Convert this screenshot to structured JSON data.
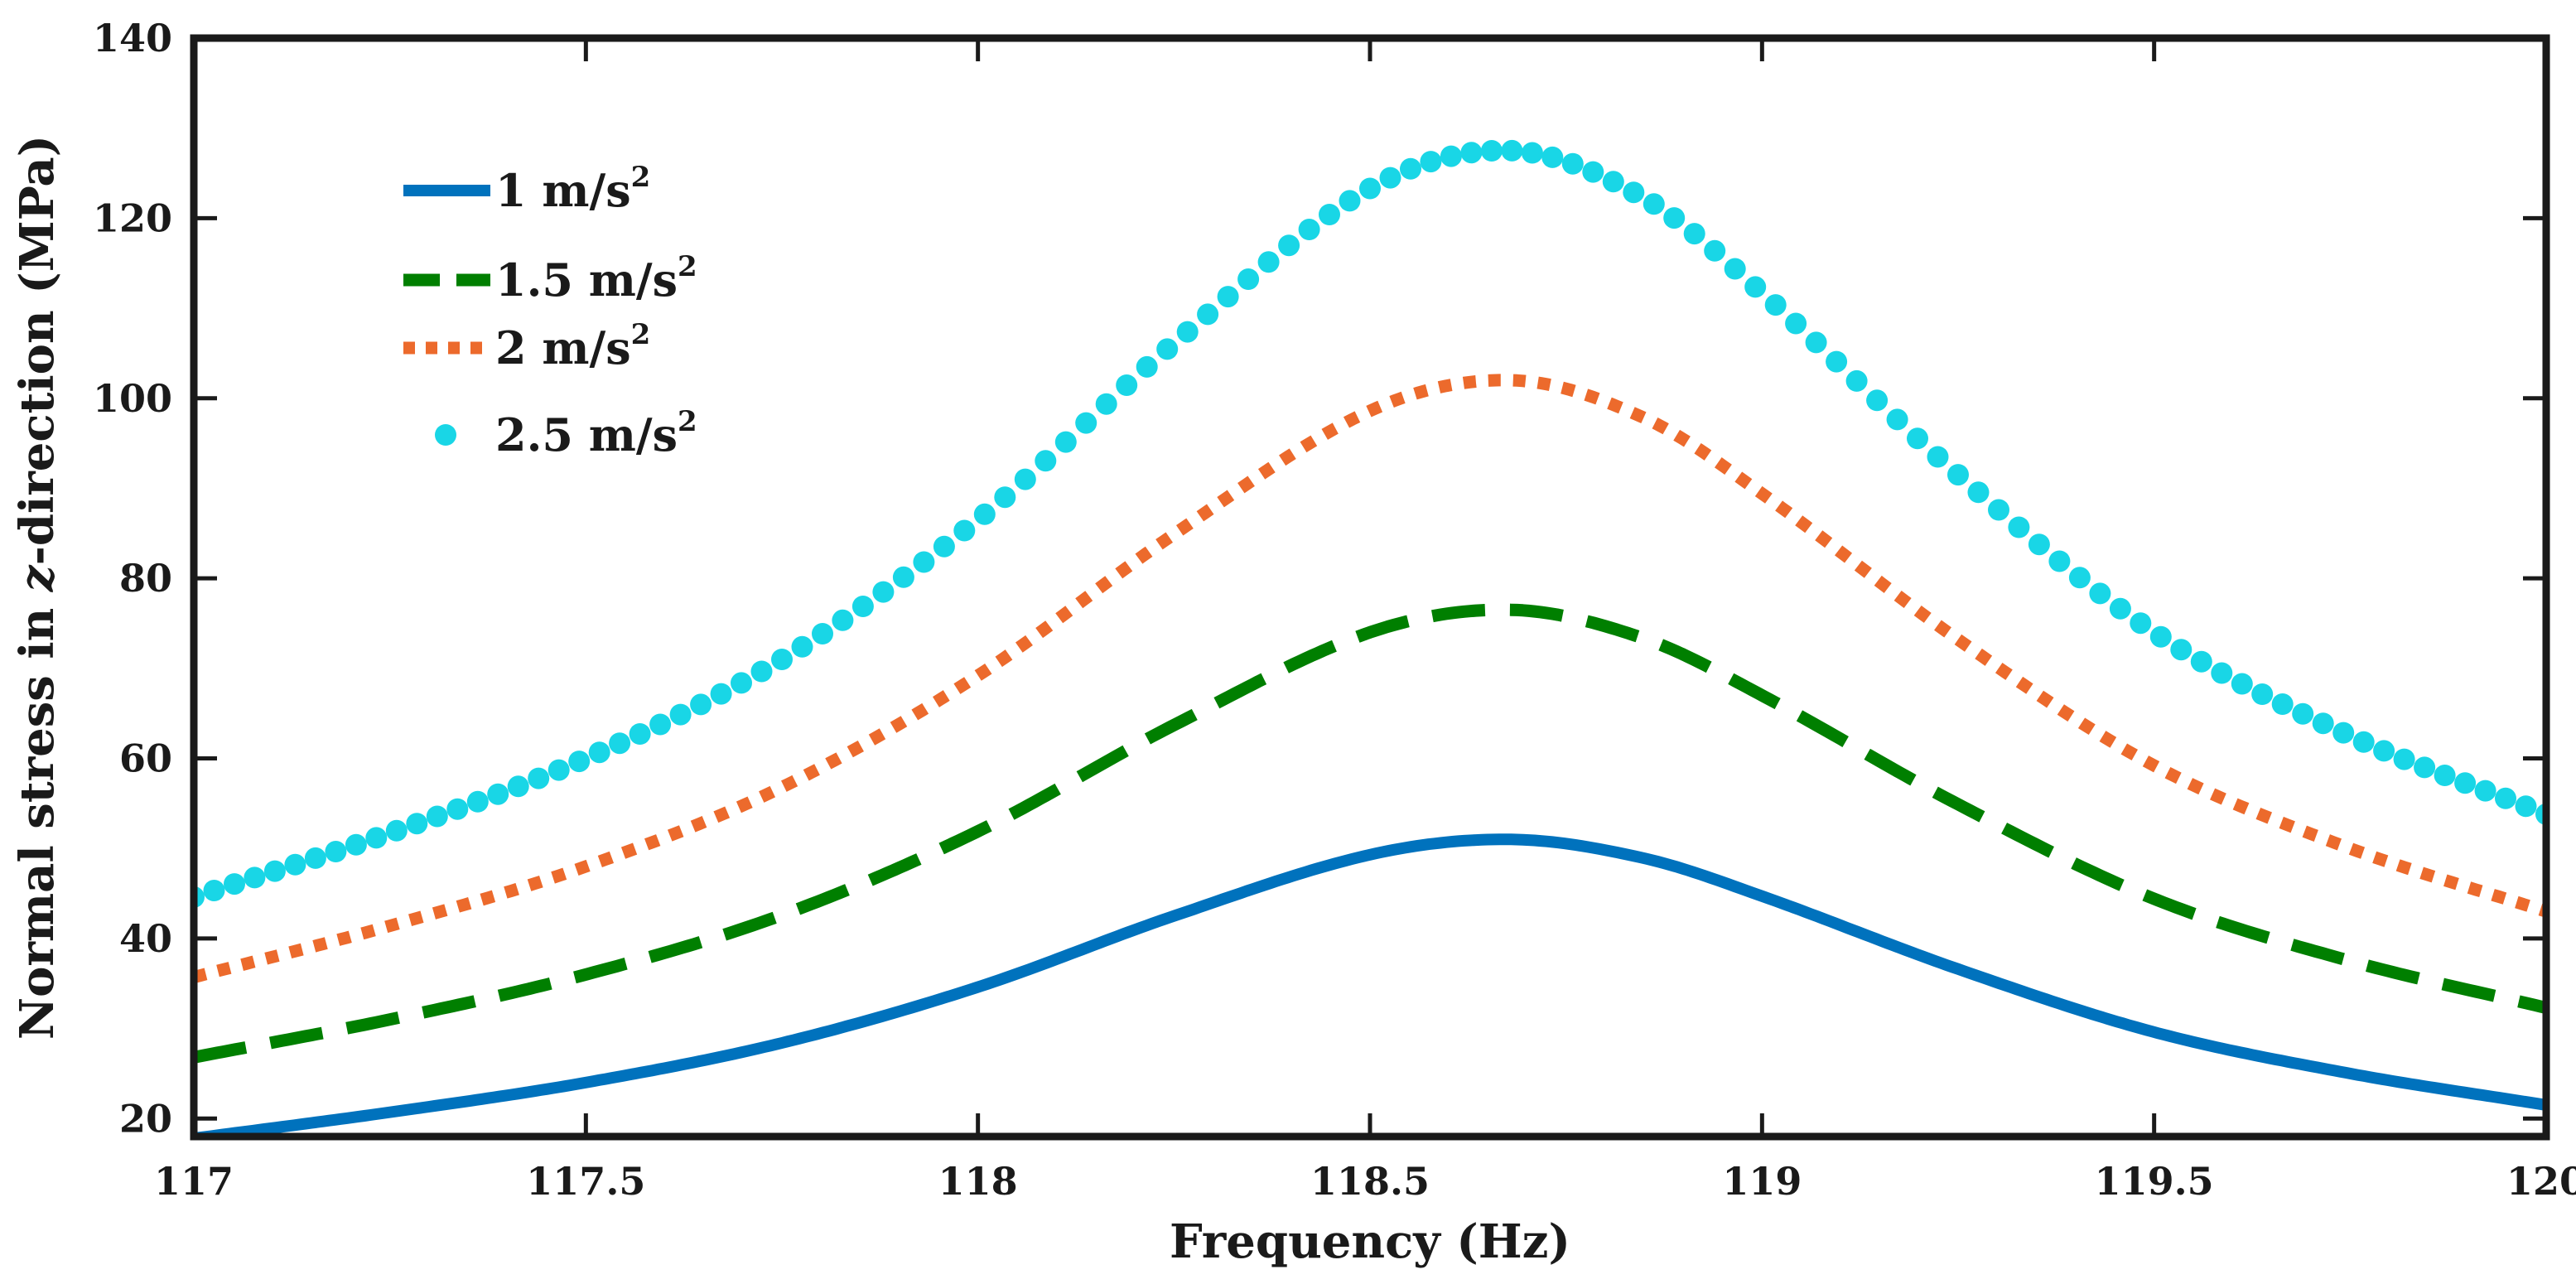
{
  "chart_data": {
    "type": "line",
    "title": "",
    "xlabel": "Frequency (Hz)",
    "ylabel": {
      "before": "Normal stress in ",
      "italic": "z",
      "after": "-direction (MPa)"
    },
    "xlim": [
      117,
      120
    ],
    "ylim": [
      18,
      140
    ],
    "xticks": [
      117,
      117.5,
      118,
      118.5,
      119,
      119.5,
      120
    ],
    "xtick_labels": [
      "117",
      "117.5",
      "118",
      "118.5",
      "119",
      "119.5",
      "120"
    ],
    "yticks": [
      20,
      40,
      60,
      80,
      100,
      120,
      140
    ],
    "ytick_labels": [
      "20",
      "40",
      "60",
      "80",
      "100",
      "120",
      "140"
    ],
    "legend_position": "top-left",
    "peak_frequency": 118.68,
    "series": [
      {
        "name": "1 m/s2",
        "label_main": "1 m/s",
        "label_sup": "2",
        "style": "solid",
        "color": "#0072BD",
        "x": [
          117.0,
          117.25,
          117.5,
          117.75,
          118.0,
          118.25,
          118.5,
          118.68,
          118.85,
          119.0,
          119.25,
          119.5,
          119.75,
          120.0
        ],
        "values": [
          17.8,
          20.7,
          24.0,
          28.4,
          34.6,
          42.5,
          49.3,
          51.0,
          48.9,
          44.7,
          36.6,
          29.6,
          25.0,
          21.5
        ]
      },
      {
        "name": "1.5 m/s2",
        "label_main": "1.5 m/s",
        "label_sup": "2",
        "style": "dashed",
        "color": "#007F00",
        "x": [
          117.0,
          117.25,
          117.5,
          117.75,
          118.0,
          118.25,
          118.5,
          118.68,
          118.85,
          119.0,
          119.25,
          119.5,
          119.75,
          120.0
        ],
        "values": [
          26.8,
          31.0,
          36.0,
          42.6,
          51.9,
          63.7,
          74.0,
          76.5,
          73.3,
          67.0,
          54.9,
          44.4,
          37.5,
          32.3
        ]
      },
      {
        "name": "2 m/s2",
        "label_main": "2 m/s",
        "label_sup": "2",
        "style": "dotted",
        "color": "#EC6A2C",
        "x": [
          117.0,
          117.25,
          117.5,
          117.75,
          118.0,
          118.25,
          118.5,
          118.68,
          118.85,
          119.0,
          119.25,
          119.5,
          119.75,
          120.0
        ],
        "values": [
          35.7,
          41.4,
          48.0,
          56.8,
          69.2,
          84.9,
          98.6,
          102.0,
          97.8,
          89.4,
          73.2,
          59.2,
          50.0,
          43.0
        ]
      },
      {
        "name": "2.5 m/s2",
        "label_main": "2.5 m/s",
        "label_sup": "2",
        "style": "markers",
        "color": "#19D6E6",
        "x": [
          117.0,
          117.25,
          117.5,
          117.75,
          118.0,
          118.25,
          118.5,
          118.68,
          118.85,
          119.0,
          119.25,
          119.5,
          119.75,
          120.0
        ],
        "values": [
          44.6,
          51.7,
          60.0,
          71.0,
          86.5,
          106.1,
          123.3,
          127.5,
          122.2,
          111.7,
          91.5,
          74.0,
          62.5,
          53.8
        ]
      }
    ]
  }
}
